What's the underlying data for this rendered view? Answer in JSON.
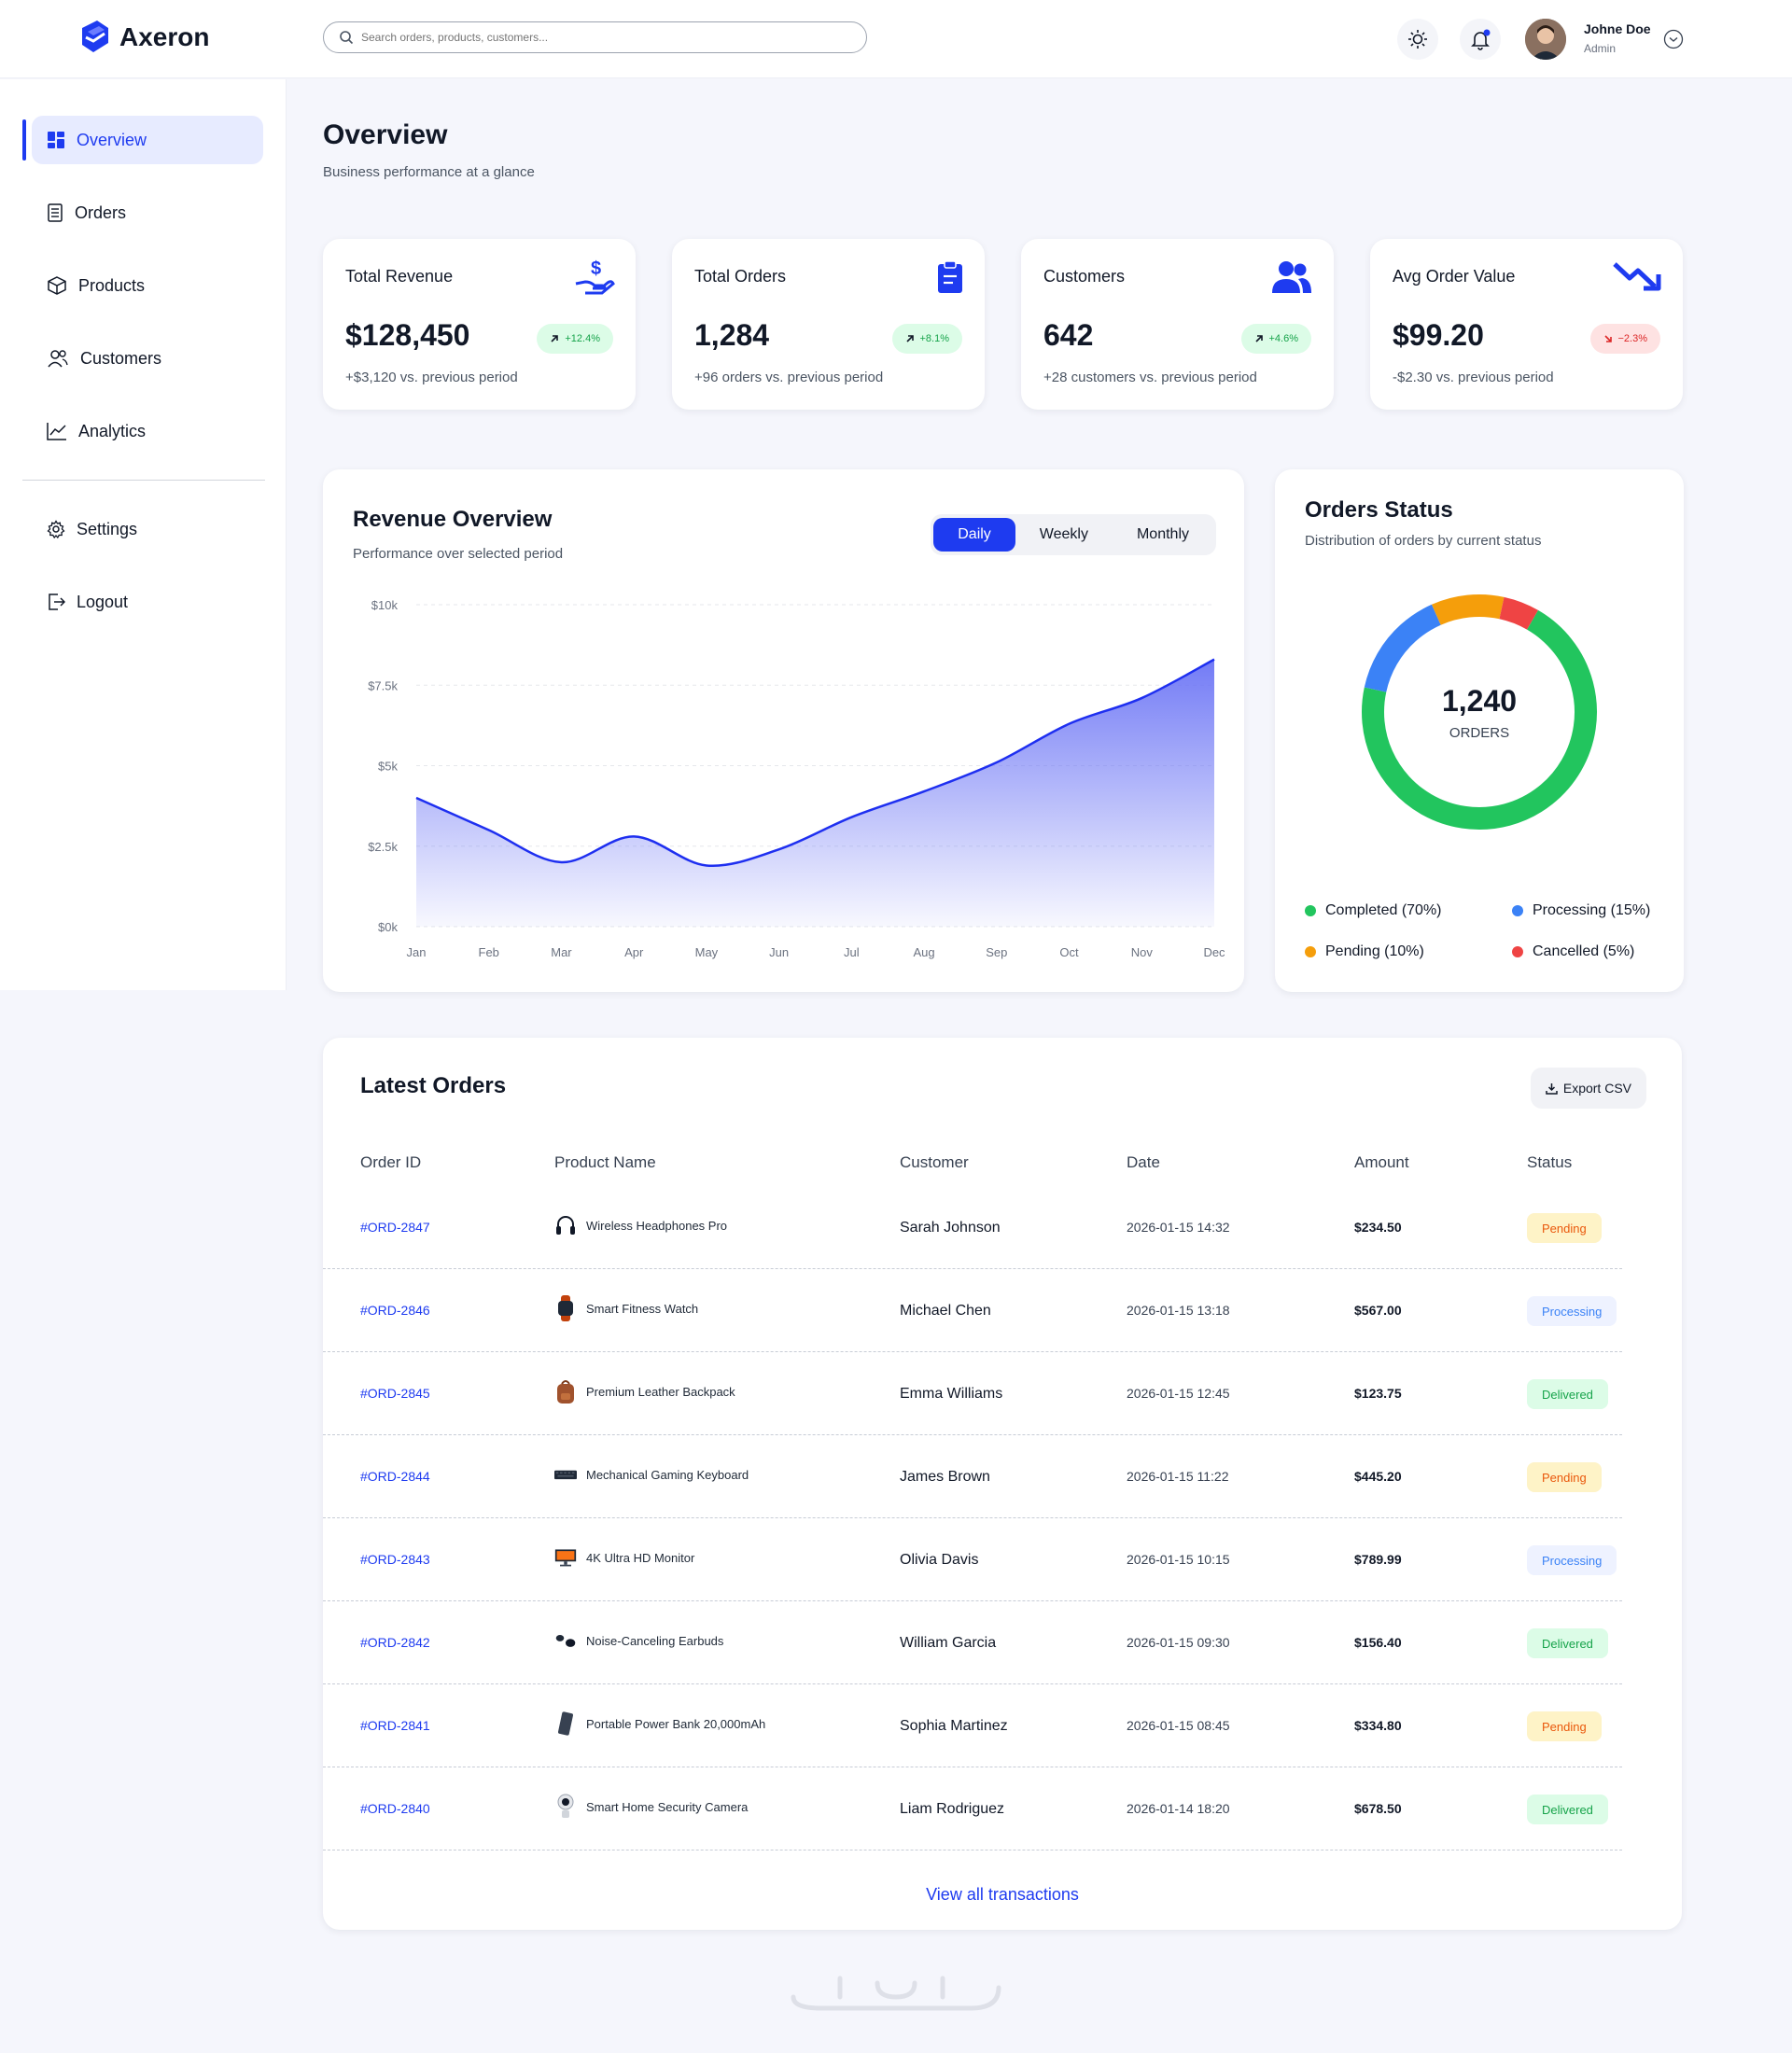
{
  "brand": {
    "name": "Axeron"
  },
  "header": {
    "search_placeholder": "Search orders, products, customers...",
    "user": {
      "name": "Johne Doe",
      "role": "Admin"
    }
  },
  "sidebar": {
    "items": [
      {
        "label": "Overview",
        "icon": "grid-icon",
        "active": true
      },
      {
        "label": "Orders",
        "icon": "receipt-icon"
      },
      {
        "label": "Products",
        "icon": "box-icon"
      },
      {
        "label": "Customers",
        "icon": "users-icon"
      },
      {
        "label": "Analytics",
        "icon": "chart-line-icon"
      },
      {
        "label": "Settings",
        "icon": "gear-icon"
      },
      {
        "label": "Logout",
        "icon": "logout-icon"
      }
    ]
  },
  "page": {
    "title": "Overview",
    "subtitle": "Business performance at a glance"
  },
  "stats": [
    {
      "title": "Total Revenue",
      "value": "$128,450",
      "change": "+12.4%",
      "trend": "up",
      "note": "+$3,120 vs. previous period",
      "icon": "money-hand-icon"
    },
    {
      "title": "Total Orders",
      "value": "1,284",
      "change": "+8.1%",
      "trend": "up",
      "note": "+96 orders vs. previous period",
      "icon": "clipboard-icon"
    },
    {
      "title": "Customers",
      "value": "642",
      "change": "+4.6%",
      "trend": "up",
      "note": "+28 customers vs. previous period",
      "icon": "users-icon"
    },
    {
      "title": "Avg Order Value",
      "value": "$99.20",
      "change": "−2.3%",
      "trend": "down",
      "note": "-$2.30 vs. previous period",
      "icon": "trend-down-icon"
    }
  ],
  "revenue": {
    "title": "Revenue Overview",
    "subtitle": "Performance over selected period",
    "tabs": [
      "Daily",
      "Weekly",
      "Monthly"
    ],
    "active_tab": "Daily"
  },
  "chart_data": {
    "type": "area",
    "title": "Revenue Overview",
    "categories": [
      "Jan",
      "Feb",
      "Mar",
      "Apr",
      "May",
      "Jun",
      "Jul",
      "Aug",
      "Sep",
      "Oct",
      "Nov",
      "Dec"
    ],
    "series": [
      {
        "values": [
          4000,
          3000,
          2000,
          2800,
          1900,
          2400,
          3400,
          4200,
          5100,
          6300,
          7100,
          8300
        ]
      }
    ],
    "ylim": [
      0,
      10000
    ],
    "yticks": [
      "$0k",
      "$2.5k",
      "$5k",
      "$7.5k",
      "$10k"
    ],
    "grid": true,
    "color": "#1e2ff0",
    "fill_color": "#6b74f5"
  },
  "orders_status": {
    "title": "Orders Status",
    "subtitle": "Distribution of orders by current status",
    "total": "1,240",
    "total_label": "ORDERS",
    "segments": [
      {
        "label": "Completed (70%)",
        "value": 70,
        "color": "#22c55e"
      },
      {
        "label": "Processing (15%)",
        "value": 15,
        "color": "#3b82f6"
      },
      {
        "label": "Pending (10%)",
        "value": 10,
        "color": "#f59e0b"
      },
      {
        "label": "Cancelled (5%)",
        "value": 5,
        "color": "#ef4444"
      }
    ]
  },
  "latest_orders": {
    "title": "Latest Orders",
    "export_label": "Export CSV",
    "columns": [
      "Order ID",
      "Product Name",
      "Customer",
      "Date",
      "Amount",
      "Status"
    ],
    "rows": [
      {
        "id": "#ORD-2847",
        "product": "Wireless Headphones Pro",
        "product_icon": "headphones-icon",
        "customer": "Sarah Johnson",
        "date": "2026-01-15 14:32",
        "amount": "$234.50",
        "status": "Pending"
      },
      {
        "id": "#ORD-2846",
        "product": "Smart Fitness Watch",
        "product_icon": "watch-icon",
        "customer": "Michael Chen",
        "date": "2026-01-15 13:18",
        "amount": "$567.00",
        "status": "Processing"
      },
      {
        "id": "#ORD-2845",
        "product": "Premium Leather Backpack",
        "product_icon": "backpack-icon",
        "customer": "Emma Williams",
        "date": "2026-01-15 12:45",
        "amount": "$123.75",
        "status": "Delivered"
      },
      {
        "id": "#ORD-2844",
        "product": "Mechanical Gaming Keyboard",
        "product_icon": "keyboard-icon",
        "customer": "James Brown",
        "date": "2026-01-15 11:22",
        "amount": "$445.20",
        "status": "Pending"
      },
      {
        "id": "#ORD-2843",
        "product": "4K Ultra HD Monitor",
        "product_icon": "monitor-icon",
        "customer": "Olivia Davis",
        "date": "2026-01-15 10:15",
        "amount": "$789.99",
        "status": "Processing"
      },
      {
        "id": "#ORD-2842",
        "product": "Noise-Canceling Earbuds",
        "product_icon": "earbuds-icon",
        "customer": "William Garcia",
        "date": "2026-01-15 09:30",
        "amount": "$156.40",
        "status": "Delivered"
      },
      {
        "id": "#ORD-2841",
        "product": "Portable Power Bank 20,000mAh",
        "product_icon": "power-bank-icon",
        "customer": "Sophia Martinez",
        "date": "2026-01-15 08:45",
        "amount": "$334.80",
        "status": "Pending"
      },
      {
        "id": "#ORD-2840",
        "product": "Smart Home Security Camera",
        "product_icon": "camera-icon",
        "customer": "Liam Rodriguez",
        "date": "2026-01-14 18:20",
        "amount": "$678.50",
        "status": "Delivered"
      }
    ],
    "view_all_label": "View all transactions"
  },
  "status_colors": {
    "Pending": {
      "bg": "#fef3c7",
      "fg": "#ea580c"
    },
    "Processing": {
      "bg": "#eef2ff",
      "fg": "#3b82f6"
    },
    "Delivered": {
      "bg": "#dcfce7",
      "fg": "#16a34a"
    }
  },
  "colors": {
    "accent": "#1e3bf0",
    "background": "#f5f6fc"
  }
}
